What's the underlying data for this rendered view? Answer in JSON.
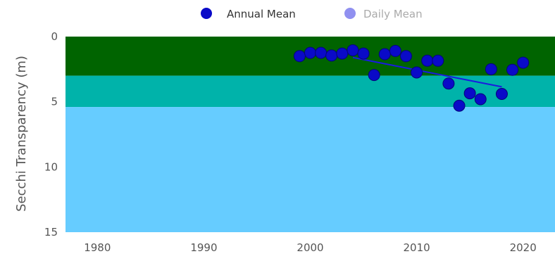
{
  "chart_data": {
    "type": "scatter",
    "xlabel": "",
    "ylabel": "Secchi Transparency (m)",
    "xlim": [
      1977,
      2023
    ],
    "ylim": [
      0,
      15
    ],
    "y_inverted": true,
    "x_ticks": [
      "1980",
      "1990",
      "2000",
      "2010",
      "2020"
    ],
    "y_ticks": [
      "0",
      "5",
      "10",
      "15"
    ],
    "legend": {
      "placement": "top-center",
      "entries": [
        {
          "label": "Annual Mean",
          "color": "#0a0ac8"
        },
        {
          "label": "Daily Mean",
          "color": "#9090f0"
        }
      ]
    },
    "bands": [
      {
        "from": 0,
        "to": 3,
        "color": "#006400"
      },
      {
        "from": 3,
        "to": 5.4,
        "color": "#00b3aa"
      },
      {
        "from": 5.4,
        "to": 15,
        "color": "#66ccff"
      }
    ],
    "series": [
      {
        "name": "Annual Mean",
        "color": "#0a0ac8",
        "x": [
          1999,
          2000,
          2001,
          2002,
          2003,
          2004,
          2005,
          2006,
          2007,
          2008,
          2009,
          2010,
          2011,
          2012,
          2013,
          2014,
          2015,
          2016,
          2017,
          2018,
          2019,
          2020
        ],
        "y": [
          1.5,
          1.25,
          1.25,
          1.45,
          1.3,
          1.05,
          1.3,
          2.95,
          1.35,
          1.1,
          1.5,
          2.75,
          1.85,
          1.85,
          3.6,
          5.3,
          4.35,
          4.8,
          2.5,
          4.4,
          2.55,
          2.0
        ]
      }
    ],
    "trendline": {
      "x": [
        2004,
        2018
      ],
      "y": [
        1.6,
        3.85
      ],
      "color": "#1a1ae0"
    }
  }
}
